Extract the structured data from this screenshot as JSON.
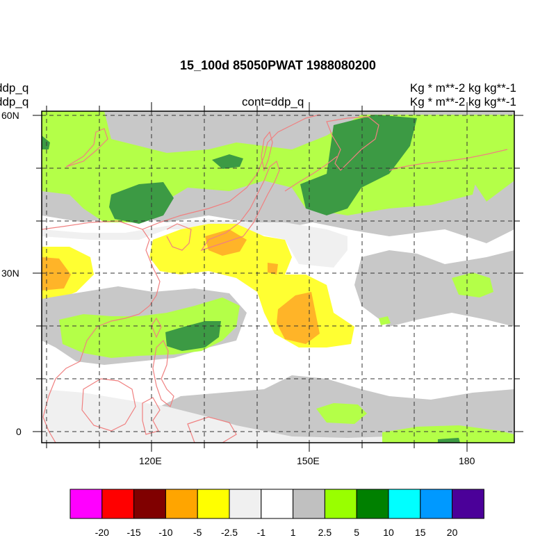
{
  "title": "15_100d 85050PWAT  1988080200",
  "left_strings": [
    "ddp_q",
    "ddp_q"
  ],
  "center_string": "cont=ddp_q",
  "right_strings": [
    "Kg  * m**-2 kg kg**-1",
    "Kg  * m**-2 kg kg**-1"
  ],
  "lat_labels": [
    "60N",
    "30N",
    "0"
  ],
  "lon_labels": [
    "120E",
    "150E",
    "180"
  ],
  "colors": {
    "coast": "#f08080",
    "fill_gray": "#c8c8c8",
    "fill_lightgray": "#f0f0f0",
    "fill_lightgreen": "#b4ff48",
    "fill_darkgreen": "#3c9a44",
    "fill_yellow": "#ffff32",
    "fill_orange": "#ffb428"
  },
  "colorbar": {
    "colors": [
      "#ff00ff",
      "#ff0000",
      "#800000",
      "#ffa500",
      "#ffff00",
      "#f0f0f0",
      "#ffffff",
      "#c0c0c0",
      "#99ff00",
      "#008000",
      "#00ffff",
      "#0099ff",
      "#4b0099"
    ],
    "labels": [
      "-20",
      "-15",
      "-10",
      "-5",
      "-2.5",
      "-1",
      "1",
      "2.5",
      "5",
      "10",
      "15",
      "20"
    ]
  }
}
